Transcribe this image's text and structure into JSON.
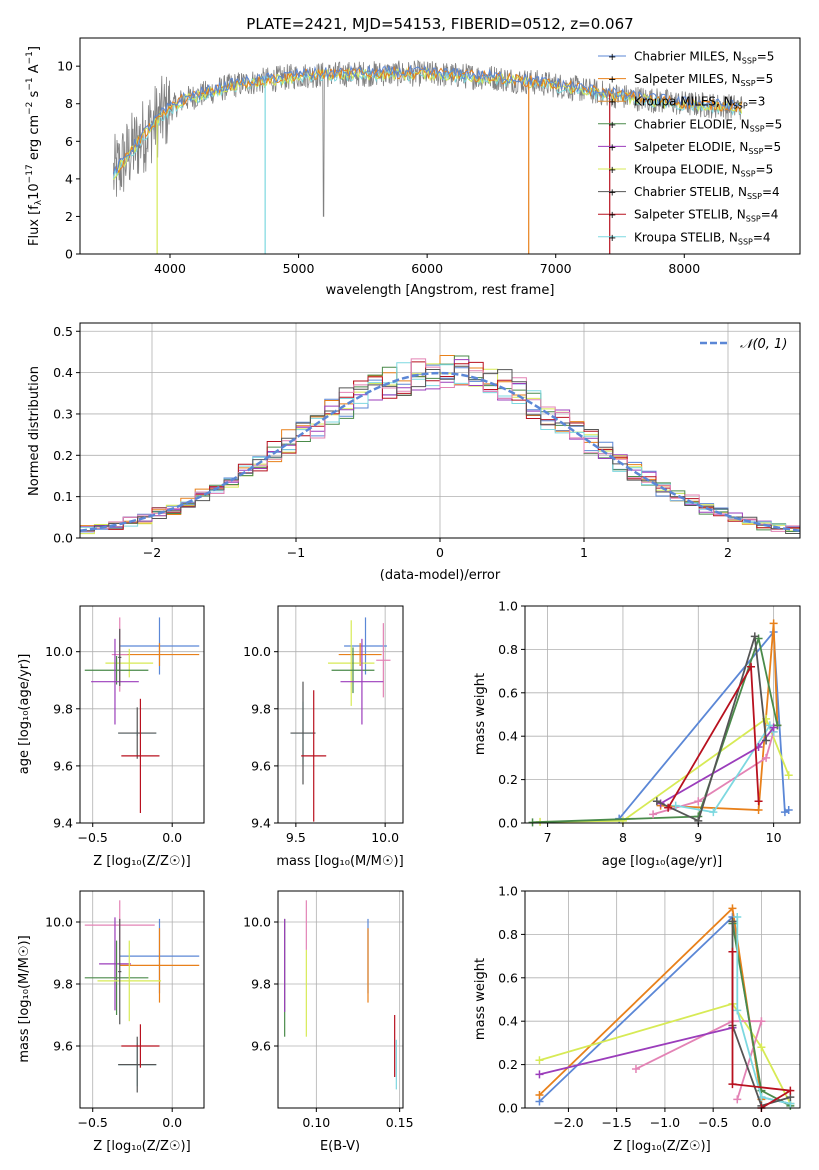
{
  "colors": {
    "chabrier_miles": "#5b87d6",
    "salpeter_miles": "#e8801a",
    "kroupa_miles": "#d78b33",
    "chabrier_elodie": "#4a8a4a",
    "salpeter_elodie": "#9b3dbb",
    "kroupa_elodie": "#d7ea55",
    "chabrier_stelib": "#555555",
    "salpeter_stelib": "#b8111f",
    "kroupa_stelib": "#7dd8e0",
    "pink": "#e383b5",
    "spectrum_gray": "#808080",
    "normal_curve": "#5b87d6"
  },
  "legend_labels": {
    "chabrier_miles": "Chabrier MILES, N",
    "salpeter_miles": "Salpeter MILES, N",
    "kroupa_miles": "Kroupa MILES, N",
    "chabrier_elodie": "Chabrier ELODIE, N",
    "salpeter_elodie": "Salpeter ELODIE, N",
    "kroupa_elodie": "Kroupa ELODIE, N",
    "chabrier_stelib": "Chabrier STELIB, N",
    "salpeter_stelib": "Salpeter STELIB, N",
    "kroupa_stelib": "Kroupa STELIB, N",
    "ssp_sub": "SSP",
    "nssp": [
      "5",
      "5",
      "3",
      "5",
      "5",
      "5",
      "4",
      "4",
      "4"
    ]
  },
  "chart_data": [
    {
      "type": "line",
      "title": "PLATE=2421, MJD=54153, FIBERID=0512, z=0.067",
      "xlabel": "wavelength [Angstrom, rest frame]",
      "ylabel": "Flux [f",
      "xlim": [
        3300,
        8900
      ],
      "ylim": [
        0,
        11.5
      ],
      "xticks": [
        4000,
        5000,
        6000,
        7000,
        8000
      ],
      "yticks": [
        0,
        2,
        4,
        6,
        8,
        10
      ],
      "legend": "top-right",
      "spectrum_continuum": [
        [
          3560,
          4.2
        ],
        [
          3700,
          5.5
        ],
        [
          3850,
          6.8
        ],
        [
          3950,
          7.5
        ],
        [
          4100,
          8.2
        ],
        [
          4300,
          8.6
        ],
        [
          4500,
          9.0
        ],
        [
          5000,
          9.5
        ],
        [
          5500,
          9.6
        ],
        [
          6000,
          9.6
        ],
        [
          6500,
          9.4
        ],
        [
          7000,
          9.0
        ],
        [
          7500,
          8.4
        ],
        [
          8000,
          8.0
        ],
        [
          8450,
          7.8
        ]
      ]
    },
    {
      "type": "line",
      "xlabel": "(data-model)/error",
      "ylabel": "Normed distribution",
      "xlim": [
        -2.5,
        2.5
      ],
      "ylim": [
        0,
        0.52
      ],
      "xticks": [
        -2,
        -1,
        0,
        1,
        2
      ],
      "xtick_labels": [
        "−2",
        "−1",
        "0",
        "1",
        "2"
      ],
      "yticks": [
        0.0,
        0.1,
        0.2,
        0.3,
        0.4,
        0.5
      ],
      "ytick_labels": [
        "0.0",
        "0.1",
        "0.2",
        "0.3",
        "0.4",
        "0.5"
      ],
      "legend_label": "𝒩(0, 1)",
      "legend": "top-right",
      "normal": {
        "mean": 0,
        "sigma": 1
      }
    },
    {
      "type": "scatter",
      "xlabel": "Z [log₁₀(Z/Z☉)]",
      "ylabel": "age  [log₁₀(age/yr)]",
      "xlim": [
        -0.58,
        0.2
      ],
      "ylim": [
        9.4,
        10.16
      ],
      "xticks": [
        -0.5,
        0.0
      ],
      "xtick_labels": [
        "−0.5",
        "0.0"
      ],
      "yticks": [
        9.4,
        9.6,
        9.8,
        10.0
      ],
      "ytick_labels": [
        "9.4",
        "9.6",
        "9.8",
        "10.0"
      ],
      "points": [
        {
          "c": "chabrier_miles",
          "x": -0.08,
          "xerr": 0.25,
          "y": 10.02,
          "yerr": 0.1
        },
        {
          "c": "salpeter_miles",
          "x": -0.08,
          "xerr": 0.25,
          "y": 9.99,
          "yerr": 0.04
        },
        {
          "c": "pink",
          "x": -0.33,
          "xerr": 0.05,
          "y": 9.99,
          "yerr": 0.13
        },
        {
          "c": "kroupa_elodie",
          "x": -0.27,
          "xerr": 0.15,
          "y": 9.96,
          "yerr": 0.05
        },
        {
          "c": "chabrier_elodie",
          "x": -0.35,
          "xerr": 0.2,
          "y": 9.935,
          "yerr": 0.05
        },
        {
          "c": "salpeter_elodie",
          "x": -0.36,
          "xerr": 0.15,
          "y": 9.895,
          "yerr": 0.15
        },
        {
          "c": "chabrier_stelib",
          "x": -0.33,
          "xerr": 0.01,
          "y": 9.98,
          "yerr": 0.1
        },
        {
          "c": "kroupa_stelib",
          "x": -0.22,
          "xerr": 0.12,
          "y": 9.715,
          "yerr": 0.01
        },
        {
          "c": "chabrier_stelib",
          "x": -0.22,
          "xerr": 0.12,
          "y": 9.715,
          "yerr": 0.09
        },
        {
          "c": "salpeter_stelib",
          "x": -0.2,
          "xerr": 0.12,
          "y": 9.635,
          "yerr": 0.2
        }
      ]
    },
    {
      "type": "scatter",
      "xlabel": "mass [log₁₀(M/M☉)]",
      "ylabel": "",
      "xlim": [
        9.4,
        10.1
      ],
      "ylim": [
        9.4,
        10.16
      ],
      "xticks": [
        9.5,
        10.0
      ],
      "xtick_labels": [
        "9.5",
        "10.0"
      ],
      "yticks": [
        9.4,
        9.6,
        9.8,
        10.0
      ],
      "ytick_labels": [
        "9.4",
        "9.6",
        "9.8",
        "10.0"
      ],
      "points": [
        {
          "c": "chabrier_miles",
          "x": 9.89,
          "xerr": 0.12,
          "y": 10.02,
          "yerr": 0.1
        },
        {
          "c": "salpeter_miles",
          "x": 9.86,
          "xerr": 0.12,
          "y": 9.99,
          "yerr": 0.04
        },
        {
          "c": "pink",
          "x": 9.99,
          "xerr": 0.04,
          "y": 9.97,
          "yerr": 0.13
        },
        {
          "c": "kroupa_elodie",
          "x": 9.81,
          "xerr": 0.13,
          "y": 9.96,
          "yerr": 0.15
        },
        {
          "c": "chabrier_elodie",
          "x": 9.82,
          "xerr": 0.12,
          "y": 9.935,
          "yerr": 0.08
        },
        {
          "c": "salpeter_elodie",
          "x": 9.87,
          "xerr": 0.12,
          "y": 9.895,
          "yerr": 0.15
        },
        {
          "c": "kroupa_stelib",
          "x": 9.54,
          "xerr": 0.07,
          "y": 9.715,
          "yerr": 0.11
        },
        {
          "c": "chabrier_stelib",
          "x": 9.54,
          "xerr": 0.07,
          "y": 9.715,
          "yerr": 0.18
        },
        {
          "c": "salpeter_stelib",
          "x": 9.6,
          "xerr": 0.07,
          "y": 9.635,
          "yerr": 0.23
        }
      ]
    },
    {
      "type": "line",
      "xlabel": "age  [log₁₀(age/yr)]",
      "ylabel": "mass weight",
      "xlim": [
        6.7,
        10.35
      ],
      "ylim": [
        0,
        1.0
      ],
      "xticks": [
        7,
        8,
        9,
        10
      ],
      "xtick_labels": [
        "7",
        "8",
        "9",
        "10"
      ],
      "yticks": [
        0.0,
        0.2,
        0.4,
        0.6,
        0.8,
        1.0
      ],
      "ytick_labels": [
        "0.0",
        "0.2",
        "0.4",
        "0.6",
        "0.8",
        "1.0"
      ],
      "series": [
        {
          "c": "chabrier_miles",
          "x": [
            7.95,
            10.0,
            10.15,
            10.2
          ],
          "y": [
            0.02,
            0.88,
            0.05,
            0.06
          ]
        },
        {
          "c": "salpeter_miles",
          "x": [
            8.5,
            9.8,
            10.0,
            10.05
          ],
          "y": [
            0.08,
            0.06,
            0.92,
            0.45
          ]
        },
        {
          "c": "kroupa_elodie",
          "x": [
            6.9,
            8.0,
            9.9,
            10.2
          ],
          "y": [
            0.005,
            0.01,
            0.48,
            0.22
          ]
        },
        {
          "c": "chabrier_elodie",
          "x": [
            6.8,
            9.0,
            9.8,
            10.05
          ],
          "y": [
            0.003,
            0.03,
            0.85,
            0.45
          ]
        },
        {
          "c": "pink",
          "x": [
            8.4,
            9.0,
            9.9,
            10.0
          ],
          "y": [
            0.04,
            0.1,
            0.3,
            0.42
          ]
        },
        {
          "c": "kroupa_stelib",
          "x": [
            8.7,
            9.2,
            9.95,
            10.0
          ],
          "y": [
            0.08,
            0.05,
            0.45,
            0.42
          ]
        },
        {
          "c": "salpeter_elodie",
          "x": [
            8.5,
            9.8,
            10.0
          ],
          "y": [
            0.09,
            0.35,
            0.44
          ]
        },
        {
          "c": "chabrier_stelib",
          "x": [
            8.45,
            9.0,
            9.75,
            9.9
          ],
          "y": [
            0.1,
            0.01,
            0.86,
            0.38
          ]
        },
        {
          "c": "salpeter_stelib",
          "x": [
            8.6,
            9.7,
            9.8
          ],
          "y": [
            0.07,
            0.72,
            0.1
          ]
        }
      ]
    },
    {
      "type": "scatter",
      "xlabel": "Z [log₁₀(Z/Z☉)]",
      "ylabel": "mass [log₁₀(M/M☉)]",
      "xlim": [
        -0.58,
        0.2
      ],
      "ylim": [
        9.4,
        10.1
      ],
      "xticks": [
        -0.5,
        0.0
      ],
      "xtick_labels": [
        "−0.5",
        "0.0"
      ],
      "yticks": [
        9.6,
        9.8,
        10.0
      ],
      "ytick_labels": [
        "9.6",
        "9.8",
        "10.0"
      ],
      "points": [
        {
          "c": "pink",
          "x": -0.33,
          "xerr": 0.22,
          "y": 9.99,
          "yerr": 0.08
        },
        {
          "c": "chabrier_miles",
          "x": -0.08,
          "xerr": 0.25,
          "y": 9.89,
          "yerr": 0.12
        },
        {
          "c": "salpeter_miles",
          "x": -0.08,
          "xerr": 0.25,
          "y": 9.86,
          "yerr": 0.12
        },
        {
          "c": "salpeter_elodie",
          "x": -0.36,
          "xerr": 0.1,
          "y": 9.865,
          "yerr": 0.15
        },
        {
          "c": "chabrier_elodie",
          "x": -0.35,
          "xerr": 0.2,
          "y": 9.82,
          "yerr": 0.12
        },
        {
          "c": "kroupa_elodie",
          "x": -0.27,
          "xerr": 0.2,
          "y": 9.81,
          "yerr": 0.13
        },
        {
          "c": "chabrier_stelib",
          "x": -0.33,
          "xerr": 0.01,
          "y": 9.84,
          "yerr": 0.17
        },
        {
          "c": "kroupa_stelib",
          "x": -0.22,
          "xerr": 0.12,
          "y": 9.54,
          "yerr": 0.07
        },
        {
          "c": "chabrier_stelib",
          "x": -0.22,
          "xerr": 0.12,
          "y": 9.54,
          "yerr": 0.09
        },
        {
          "c": "salpeter_stelib",
          "x": -0.2,
          "xerr": 0.12,
          "y": 9.6,
          "yerr": 0.07
        }
      ]
    },
    {
      "type": "scatter",
      "xlabel": "E(B-V)",
      "ylabel": "",
      "xlim": [
        0.077,
        0.152
      ],
      "ylim": [
        9.4,
        10.1
      ],
      "xticks": [
        0.1,
        0.15
      ],
      "xtick_labels": [
        "0.10",
        "0.15"
      ],
      "yticks": [
        9.6,
        9.8,
        10.0
      ],
      "ytick_labels": [
        "9.6",
        "9.8",
        "10.0"
      ],
      "points": [
        {
          "c": "chabrier_elodie",
          "x": 0.081,
          "xerr": 0,
          "y": 9.82,
          "yerr": 0.19
        },
        {
          "c": "salpeter_elodie",
          "x": 0.081,
          "xerr": 0,
          "y": 9.86,
          "yerr": 0.15
        },
        {
          "c": "pink",
          "x": 0.094,
          "xerr": 0,
          "y": 9.99,
          "yerr": 0.08
        },
        {
          "c": "kroupa_elodie",
          "x": 0.094,
          "xerr": 0,
          "y": 9.77,
          "yerr": 0.14
        },
        {
          "c": "chabrier_miles",
          "x": 0.131,
          "xerr": 0,
          "y": 9.89,
          "yerr": 0.12
        },
        {
          "c": "salpeter_miles",
          "x": 0.131,
          "xerr": 0,
          "y": 9.86,
          "yerr": 0.12
        },
        {
          "c": "salpeter_stelib",
          "x": 0.147,
          "xerr": 0,
          "y": 9.6,
          "yerr": 0.1
        },
        {
          "c": "kroupa_stelib",
          "x": 0.148,
          "xerr": 0,
          "y": 9.54,
          "yerr": 0.08
        }
      ]
    },
    {
      "type": "line",
      "xlabel": "Z [log₁₀(Z/Z☉)]",
      "ylabel": "mass weight",
      "xlim": [
        -2.45,
        0.4
      ],
      "ylim": [
        0,
        1.0
      ],
      "xticks": [
        -2.0,
        -1.5,
        -1.0,
        -0.5,
        0.0
      ],
      "xtick_labels": [
        "−2.0",
        "−1.5",
        "−1.0",
        "−0.5",
        "0.0"
      ],
      "yticks": [
        0.0,
        0.2,
        0.4,
        0.6,
        0.8,
        1.0
      ],
      "ytick_labels": [
        "0.0",
        "0.2",
        "0.4",
        "0.6",
        "0.8",
        "1.0"
      ],
      "series": [
        {
          "c": "chabrier_miles",
          "x": [
            -2.3,
            -0.3,
            0.0,
            0.3
          ],
          "y": [
            0.03,
            0.88,
            0.05,
            0.02
          ]
        },
        {
          "c": "salpeter_miles",
          "x": [
            -2.3,
            -0.3,
            0.0
          ],
          "y": [
            0.06,
            0.92,
            0.04
          ]
        },
        {
          "c": "kroupa_elodie",
          "x": [
            -2.3,
            -0.3,
            0.0,
            0.3
          ],
          "y": [
            0.22,
            0.48,
            0.28,
            0.02
          ]
        },
        {
          "c": "pink",
          "x": [
            -1.3,
            -0.3,
            0.0,
            -0.25
          ],
          "y": [
            0.18,
            0.4,
            0.4,
            0.04
          ]
        },
        {
          "c": "salpeter_elodie",
          "x": [
            -2.3,
            -0.3
          ],
          "y": [
            0.155,
            0.37
          ]
        },
        {
          "c": "chabrier_elodie",
          "x": [
            -0.3,
            0.0,
            0.3
          ],
          "y": [
            0.85,
            0.08,
            0.01
          ]
        },
        {
          "c": "kroupa_stelib",
          "x": [
            -0.25,
            -0.25,
            0.0,
            0.3
          ],
          "y": [
            0.88,
            0.45,
            0.05,
            0.02
          ]
        },
        {
          "c": "chabrier_stelib",
          "x": [
            -0.3,
            -0.3,
            0.0,
            0.3
          ],
          "y": [
            0.86,
            0.38,
            0.01,
            0.05
          ]
        },
        {
          "c": "salpeter_stelib",
          "x": [
            -0.3,
            -0.3,
            0.3,
            0.0
          ],
          "y": [
            0.72,
            0.11,
            0.08,
            0.0
          ]
        }
      ]
    }
  ]
}
